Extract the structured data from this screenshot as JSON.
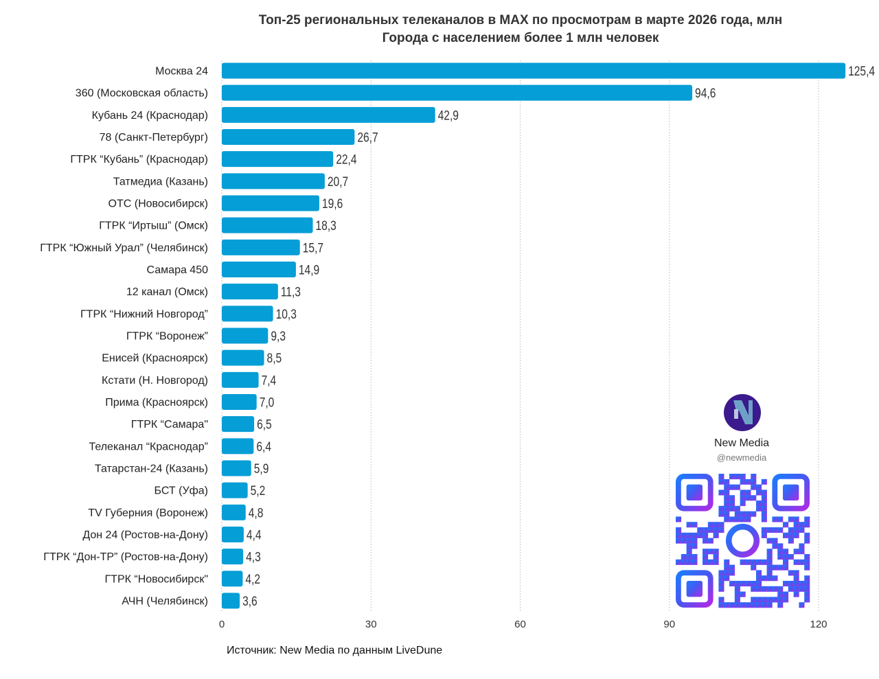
{
  "chart_data": {
    "type": "bar",
    "orientation": "horizontal",
    "title": "Топ-25 региональных телеканалов в MAX по просмотрам в марте 2026 года, млн",
    "subtitle": "Города с населением более 1 млн человек",
    "categories": [
      "Москва 24",
      "360 (Московская область)",
      "Кубань 24 (Краснодар)",
      "78 (Санкт-Петербург)",
      "ГТРК “Кубань” (Краснодар)",
      "Татмедиа (Казань)",
      "ОТС (Новосибирск)",
      "ГТРК “Иртыш” (Омск)",
      "ГТРК “Южный Урал” (Челябинск)",
      "Самара 450",
      "12 канал (Омск)",
      "ГТРК “Нижний Новгород”",
      "ГТРК “Воронеж”",
      "Енисей (Красноярск)",
      "Кстати (Н. Новгород)",
      "Прима (Красноярск)",
      "ГТРК “Самара\"",
      "Телеканал “Краснодар”",
      "Татарстан-24 (Казань)",
      "БСТ (Уфа)",
      "TV Губерния (Воронеж)",
      "Дон 24 (Ростов-на-Дону)",
      "ГТРК “Дон-ТР” (Ростов-на-Дону)",
      "ГТРК “Новосибирск\"",
      "АЧН (Челябинск)"
    ],
    "values": [
      125.4,
      94.6,
      42.9,
      26.7,
      22.4,
      20.7,
      19.6,
      18.3,
      15.7,
      14.9,
      11.3,
      10.3,
      9.3,
      8.5,
      7.4,
      7.0,
      6.5,
      6.4,
      5.9,
      5.2,
      4.8,
      4.4,
      4.3,
      4.2,
      3.6
    ],
    "value_labels": [
      "125,4",
      "94,6",
      "42,9",
      "26,7",
      "22,4",
      "20,7",
      "19,6",
      "18,3",
      "15,7",
      "14,9",
      "11,3",
      "10,3",
      "9,3",
      "8,5",
      "7,4",
      "7,0",
      "6,5",
      "6,4",
      "5,9",
      "5,2",
      "4,8",
      "4,4",
      "4,3",
      "4,2",
      "3,6"
    ],
    "xlim": [
      0,
      120
    ],
    "xticks": [
      "0",
      "30",
      "60",
      "90",
      "120"
    ],
    "grid": true,
    "bar_color": "#069ed6"
  },
  "source": "Источник: New Media по данным LiveDune",
  "brand": {
    "name": "New Media",
    "handle": "@newmedia",
    "logo_text": "New Media",
    "logo_color": "#3a1a8c"
  }
}
